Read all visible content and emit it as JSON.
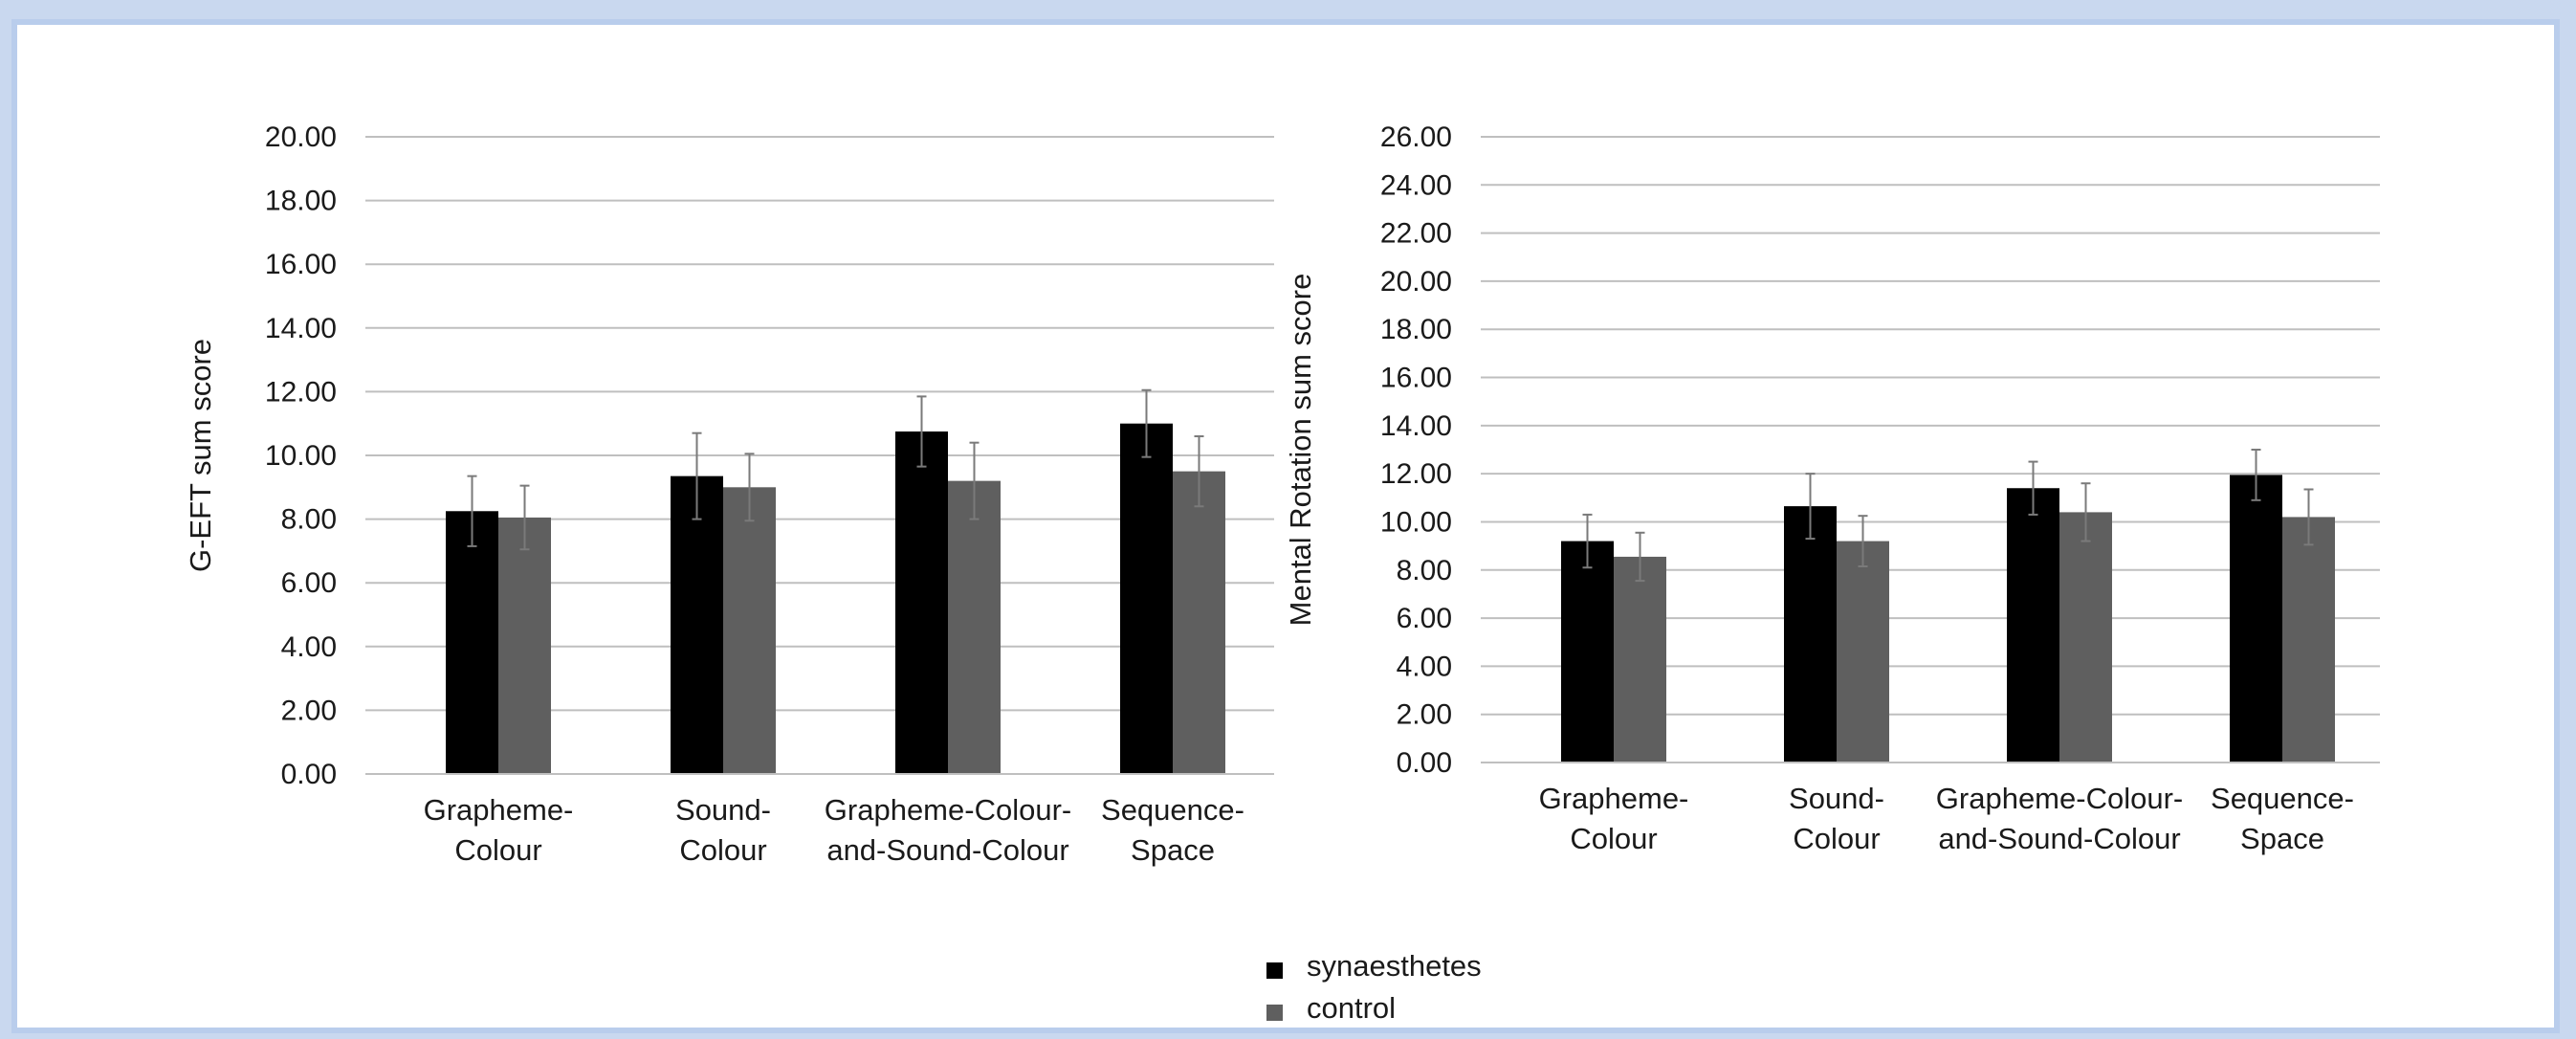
{
  "chart_data": [
    {
      "type": "bar",
      "ylabel": "G-EFT sum score",
      "ylim": [
        0,
        20
      ],
      "ytick_step": 2,
      "ytick_labels": [
        "0.00",
        "2.00",
        "4.00",
        "6.00",
        "8.00",
        "10.00",
        "12.00",
        "14.00",
        "16.00",
        "18.00",
        "20.00"
      ],
      "grid": true,
      "categories": [
        [
          "Grapheme-",
          "Colour"
        ],
        [
          "Sound-",
          "Colour"
        ],
        [
          "Grapheme-Colour-",
          "and-Sound-Colour"
        ],
        [
          "Sequence-",
          "Space"
        ]
      ],
      "series": [
        {
          "name": "synaesthetes",
          "color": "#000000",
          "values": [
            8.25,
            9.35,
            10.75,
            11.0
          ],
          "errors": [
            1.1,
            1.35,
            1.1,
            1.05
          ]
        },
        {
          "name": "control",
          "color": "#5f5f5f",
          "values": [
            8.05,
            9.0,
            9.2,
            9.5
          ],
          "errors": [
            1.0,
            1.05,
            1.2,
            1.1
          ]
        }
      ]
    },
    {
      "type": "bar",
      "ylabel": "Mental Rotation sum score",
      "ylim": [
        0,
        26
      ],
      "ytick_step": 2,
      "ytick_labels": [
        "0.00",
        "2.00",
        "4.00",
        "6.00",
        "8.00",
        "10.00",
        "12.00",
        "14.00",
        "16.00",
        "18.00",
        "20.00",
        "22.00",
        "24.00",
        "26.00"
      ],
      "grid": true,
      "categories": [
        [
          "Grapheme-",
          "Colour"
        ],
        [
          "Sound-",
          "Colour"
        ],
        [
          "Grapheme-Colour-",
          "and-Sound-Colour"
        ],
        [
          "Sequence-",
          "Space"
        ]
      ],
      "series": [
        {
          "name": "synaesthetes",
          "color": "#000000",
          "values": [
            9.2,
            10.65,
            11.4,
            11.95
          ],
          "errors": [
            1.1,
            1.35,
            1.1,
            1.05
          ]
        },
        {
          "name": "control",
          "color": "#5f5f5f",
          "values": [
            8.55,
            9.2,
            10.4,
            10.2
          ],
          "errors": [
            1.0,
            1.05,
            1.2,
            1.15
          ]
        }
      ]
    }
  ],
  "legend": {
    "placement": "bottom-center",
    "items": [
      {
        "label": "synaesthetes",
        "color": "#000000"
      },
      {
        "label": "control",
        "color": "#5f5f5f"
      }
    ]
  }
}
